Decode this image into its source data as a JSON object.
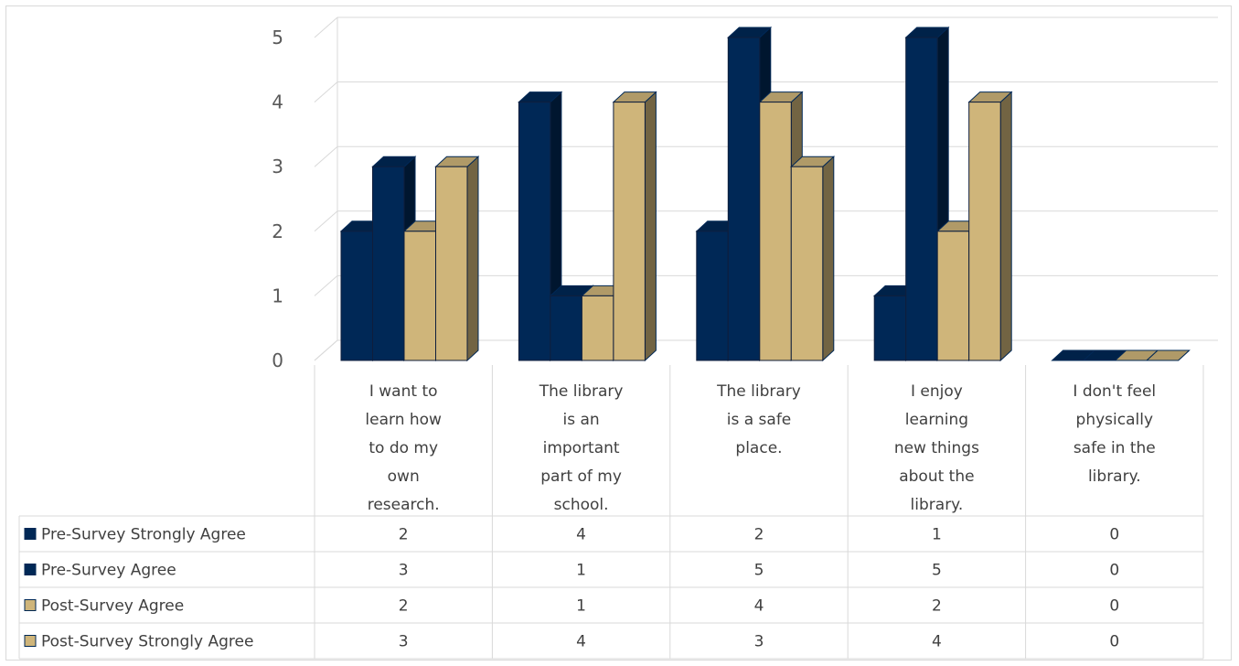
{
  "chart_data": {
    "type": "bar",
    "variant": "3d-clustered-column-with-data-table",
    "categories": [
      "I want to learn how to do my own research.",
      "The library is an important part of my school.",
      "The library is a safe place.",
      "I enjoy learning new things about the library.",
      "I don't feel physically safe in the library."
    ],
    "category_lines": [
      [
        "I want to",
        "learn how",
        "to do my",
        "own",
        "research."
      ],
      [
        "The library",
        "is an",
        "important",
        "part of my",
        "school."
      ],
      [
        "The library",
        "is a safe",
        "place."
      ],
      [
        "I enjoy",
        "learning",
        "new things",
        "about the",
        "library."
      ],
      [
        "I don't feel",
        "physically",
        "safe in the",
        "library."
      ]
    ],
    "series": [
      {
        "name": "Pre-Survey Strongly Agree",
        "values": [
          2,
          4,
          2,
          1,
          0
        ],
        "color": "#002856"
      },
      {
        "name": "Pre-Survey Agree",
        "values": [
          3,
          1,
          5,
          5,
          0
        ],
        "color": "#002856"
      },
      {
        "name": "Post-Survey Agree",
        "values": [
          2,
          1,
          4,
          2,
          0
        ],
        "color": "#cfb57a"
      },
      {
        "name": "Post-Survey Strongly Agree",
        "values": [
          3,
          4,
          3,
          4,
          0
        ],
        "color": "#cfb57a"
      }
    ],
    "y_ticks": [
      "0",
      "1",
      "2",
      "3",
      "4",
      "5"
    ],
    "ylim": [
      0,
      5
    ],
    "grid": true,
    "legend": "data-table-left"
  }
}
